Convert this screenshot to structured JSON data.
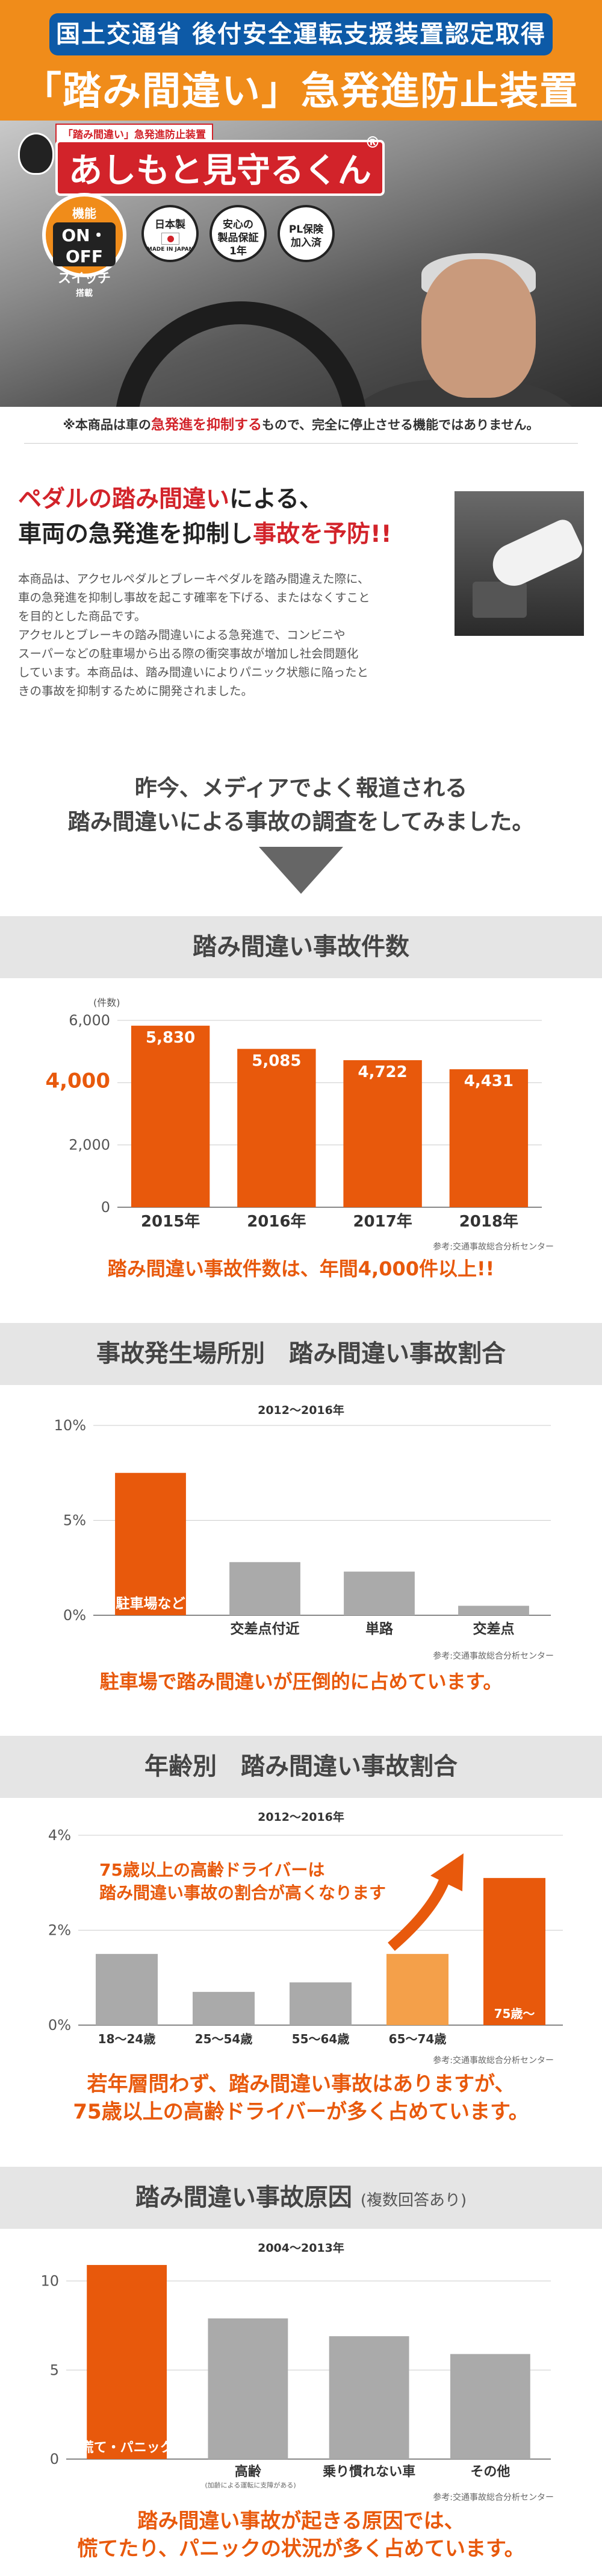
{
  "hero": {
    "title1": "国土交通省 後付安全運転支援装置認定取得",
    "title2": "「踏み間違い」急発進防止装置",
    "logo_sub": "「踏み間違い」急発進防止装置",
    "logo_main": "あしもと見守るくん",
    "registered": "®",
    "badge_onoff": {
      "l1": "機能",
      "l2": "ON・OFF",
      "l3": "スイッチ",
      "l4": "搭載"
    },
    "badges": [
      {
        "l1": "日本製",
        "l2": "MADE IN JAPAN"
      },
      {
        "l1": "安心の",
        "l2": "製品保証",
        "l3": "1年"
      },
      {
        "l1": "PL保険",
        "l2": "加入済"
      }
    ],
    "colors": {
      "orange": "#f08c1a",
      "blue": "#0d5aa7",
      "red": "#d2232a"
    }
  },
  "disclaimer": {
    "pre": "※本商品は車の",
    "highlight": "急発進を抑制する",
    "post": "もので、完全に停止させる機能ではありません。"
  },
  "intro": {
    "head1a": "ペダルの踏み間違い",
    "head1b": "による、",
    "head2a": "車両の急発進を抑制し",
    "head2b": "事故を予防!!",
    "body": [
      "本商品は、アクセルペダルとブレーキペダルを踏み間違えた際に、",
      "車の急発進を抑制し事故を起こす確率を下げる、またはなくすこと",
      "を目的とした商品です。",
      "アクセルとブレーキの踏み間違いによる急発進で、コンビニや",
      "スーパーなどの駐車場から出る際の衝突事故が増加し社会問題化",
      "しています。本商品は、踏み間違いによりパニック状態に陥ったと",
      "きの事故を抑制するために開発されました。"
    ]
  },
  "media": {
    "line1": "昨今、メディアでよく報道される",
    "line2": "踏み間違いによる事故の調査をしてみました。"
  },
  "sections": [
    {
      "title": "踏み間違い事故件数",
      "sub": "",
      "caption": "踏み間違い事故件数は、年間4,000件以上!!",
      "source": "参考:交通事故総合分析センター",
      "period": ""
    },
    {
      "title": "事故発生場所別　踏み間違い事故割合",
      "sub": "",
      "caption": "駐車場で踏み間違いが圧倒的に占めています。",
      "source": "参考:交通事故総合分析センター",
      "period": "2012～2016年"
    },
    {
      "title": "年齢別　踏み間違い事故割合",
      "sub": "",
      "caption1": "若年層問わず、踏み間違い事故はありますが、",
      "caption2": "75歳以上の高齢ドライバーが多く占めています。",
      "source": "参考:交通事故総合分析センター",
      "period": "2012～2016年",
      "annotation1": "75歳以上の高齢ドライバーは",
      "annotation2": "踏み間違い事故の割合が高くなります"
    },
    {
      "title": "踏み間違い事故原因",
      "sub": "(複数回答あり)",
      "caption1": "踏み間違い事故が起きる原因では、",
      "caption2": "慌てたり、パニックの状況が多く占めています。",
      "source": "参考:交通事故総合分析センター",
      "period": "2004～2013年",
      "note": "(加齢による運転に支障がある)"
    }
  ],
  "chart_data": [
    {
      "type": "bar",
      "title": "踏み間違い事故件数",
      "categories": [
        "2015年",
        "2016年",
        "2017年",
        "2018年"
      ],
      "values": [
        5830,
        5085,
        4722,
        4431
      ],
      "data_labels": [
        "5,830",
        "5,085",
        "4,722",
        "4,431"
      ],
      "ylabel": "(件数)",
      "yticks": [
        0,
        2000,
        4000,
        6000
      ],
      "ytick_labels": [
        "0",
        "2,000",
        "4,000",
        "6,000"
      ],
      "highlight_tick": "4,000",
      "ylim": [
        0,
        6000
      ],
      "colors": {
        "bar": "#e8590c"
      }
    },
    {
      "type": "bar",
      "title": "事故発生場所別　踏み間違い事故割合",
      "categories": [
        "駐車場など",
        "交差点付近",
        "単路",
        "交差点"
      ],
      "values": [
        7.5,
        2.8,
        2.3,
        0.5
      ],
      "unit": "%",
      "yticks": [
        0,
        5,
        10
      ],
      "ytick_labels": [
        "0%",
        "5%",
        "10%"
      ],
      "ylim": [
        0,
        10
      ],
      "colors": {
        "highlight": "#e8590c",
        "other": "#aaaaaa"
      }
    },
    {
      "type": "bar",
      "title": "年齢別　踏み間違い事故割合",
      "categories": [
        "18～24歳",
        "25～54歳",
        "55～64歳",
        "65～74歳",
        "75歳～"
      ],
      "values": [
        1.5,
        0.7,
        0.9,
        1.5,
        3.1
      ],
      "unit": "%",
      "yticks": [
        0,
        2,
        4
      ],
      "ytick_labels": [
        "0%",
        "2%",
        "4%"
      ],
      "ylim": [
        0,
        4
      ],
      "colors": {
        "highlight": "#e8590c",
        "mid": "#f4a04a",
        "other": "#aaaaaa"
      }
    },
    {
      "type": "bar",
      "title": "踏み間違い事故原因",
      "categories": [
        "慌て・パニック",
        "高齢",
        "乗り慣れない車",
        "その他"
      ],
      "values": [
        10.9,
        7.9,
        6.9,
        5.9
      ],
      "yticks": [
        0,
        5,
        10
      ],
      "ytick_labels": [
        "0",
        "5",
        "10"
      ],
      "ylim": [
        0,
        11
      ],
      "colors": {
        "highlight": "#e8590c",
        "other": "#aaaaaa"
      }
    }
  ]
}
